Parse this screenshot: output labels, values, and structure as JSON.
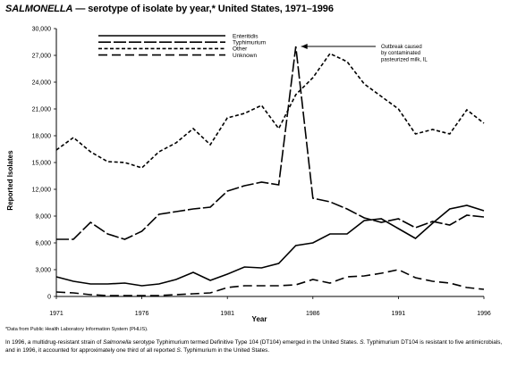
{
  "title": {
    "italic": "SALMONELLA",
    "rest": " — serotype of isolate by year,* United States, 1971–1996"
  },
  "footnote": "*Data from Public Health Laboratory Information System (PHLIS).",
  "note": {
    "p1": "In 1996, a multidrug-resistant strain of ",
    "p2": "Salmonella",
    "p3": " serotype Typhimurium termed Definitive Type 104 (DT104) emerged in the United States. ",
    "p4": "S.",
    "p5": " Typhimurium DT104 is resistant to five antimicrobials, and in 1996, it accounted for approximately one third of all reported ",
    "p6": "S.",
    "p7": " Typhimurium in the United States."
  },
  "chart_data": {
    "type": "line",
    "xlabel": "Year",
    "ylabel": "Reported Isolates",
    "xlim": [
      1971,
      1996
    ],
    "ylim": [
      0,
      30000
    ],
    "x_ticks": [
      "1971",
      "1976",
      "1981",
      "1986",
      "1991",
      "1996"
    ],
    "y_ticks": [
      "0",
      "3,000",
      "6,000",
      "9,000",
      "12,000",
      "15,000",
      "18,000",
      "21,000",
      "24,000",
      "27,000",
      "30,000"
    ],
    "x": [
      1971,
      1972,
      1973,
      1974,
      1975,
      1976,
      1977,
      1978,
      1979,
      1980,
      1981,
      1982,
      1983,
      1984,
      1985,
      1986,
      1987,
      1988,
      1989,
      1990,
      1991,
      1992,
      1993,
      1994,
      1995,
      1996
    ],
    "series": [
      {
        "name": "Enteritidis",
        "dash": "solid",
        "values": [
          2200,
          1700,
          1400,
          1400,
          1500,
          1200,
          1400,
          1900,
          2700,
          1800,
          2500,
          3300,
          3200,
          3700,
          5700,
          6000,
          7000,
          7000,
          8500,
          8700,
          7600,
          6500,
          8200,
          9800,
          10200,
          9600
        ]
      },
      {
        "name": "Typhimurium",
        "dash": "long",
        "values": [
          6400,
          6400,
          8300,
          7000,
          6400,
          7300,
          9200,
          9500,
          9800,
          10000,
          11800,
          12400,
          12800,
          12500,
          28000,
          11000,
          10600,
          9800,
          8800,
          8300,
          8700,
          7700,
          8400,
          8000,
          9100,
          8900
        ]
      },
      {
        "name": "Other",
        "dash": "short",
        "values": [
          16400,
          17800,
          16200,
          15100,
          15000,
          14400,
          16200,
          17200,
          18800,
          17000,
          20000,
          20500,
          21400,
          18800,
          22600,
          24500,
          27200,
          26300,
          23800,
          22400,
          21000,
          18200,
          18700,
          18200,
          20900,
          19400
        ]
      },
      {
        "name": "Unknown",
        "dash": "long-dash",
        "values": [
          500,
          400,
          200,
          100,
          100,
          100,
          100,
          200,
          300,
          400,
          1000,
          1200,
          1200,
          1200,
          1300,
          1900,
          1500,
          2200,
          2300,
          2600,
          3000,
          2100,
          1700,
          1500,
          1000,
          800
        ]
      }
    ],
    "legend_position": "top-left",
    "annotations": [
      {
        "lines": [
          "Outbreak caused",
          "by contaminated",
          "pasteurized milk, IL"
        ],
        "x": 1985,
        "y": 28000
      }
    ],
    "grid": false
  }
}
